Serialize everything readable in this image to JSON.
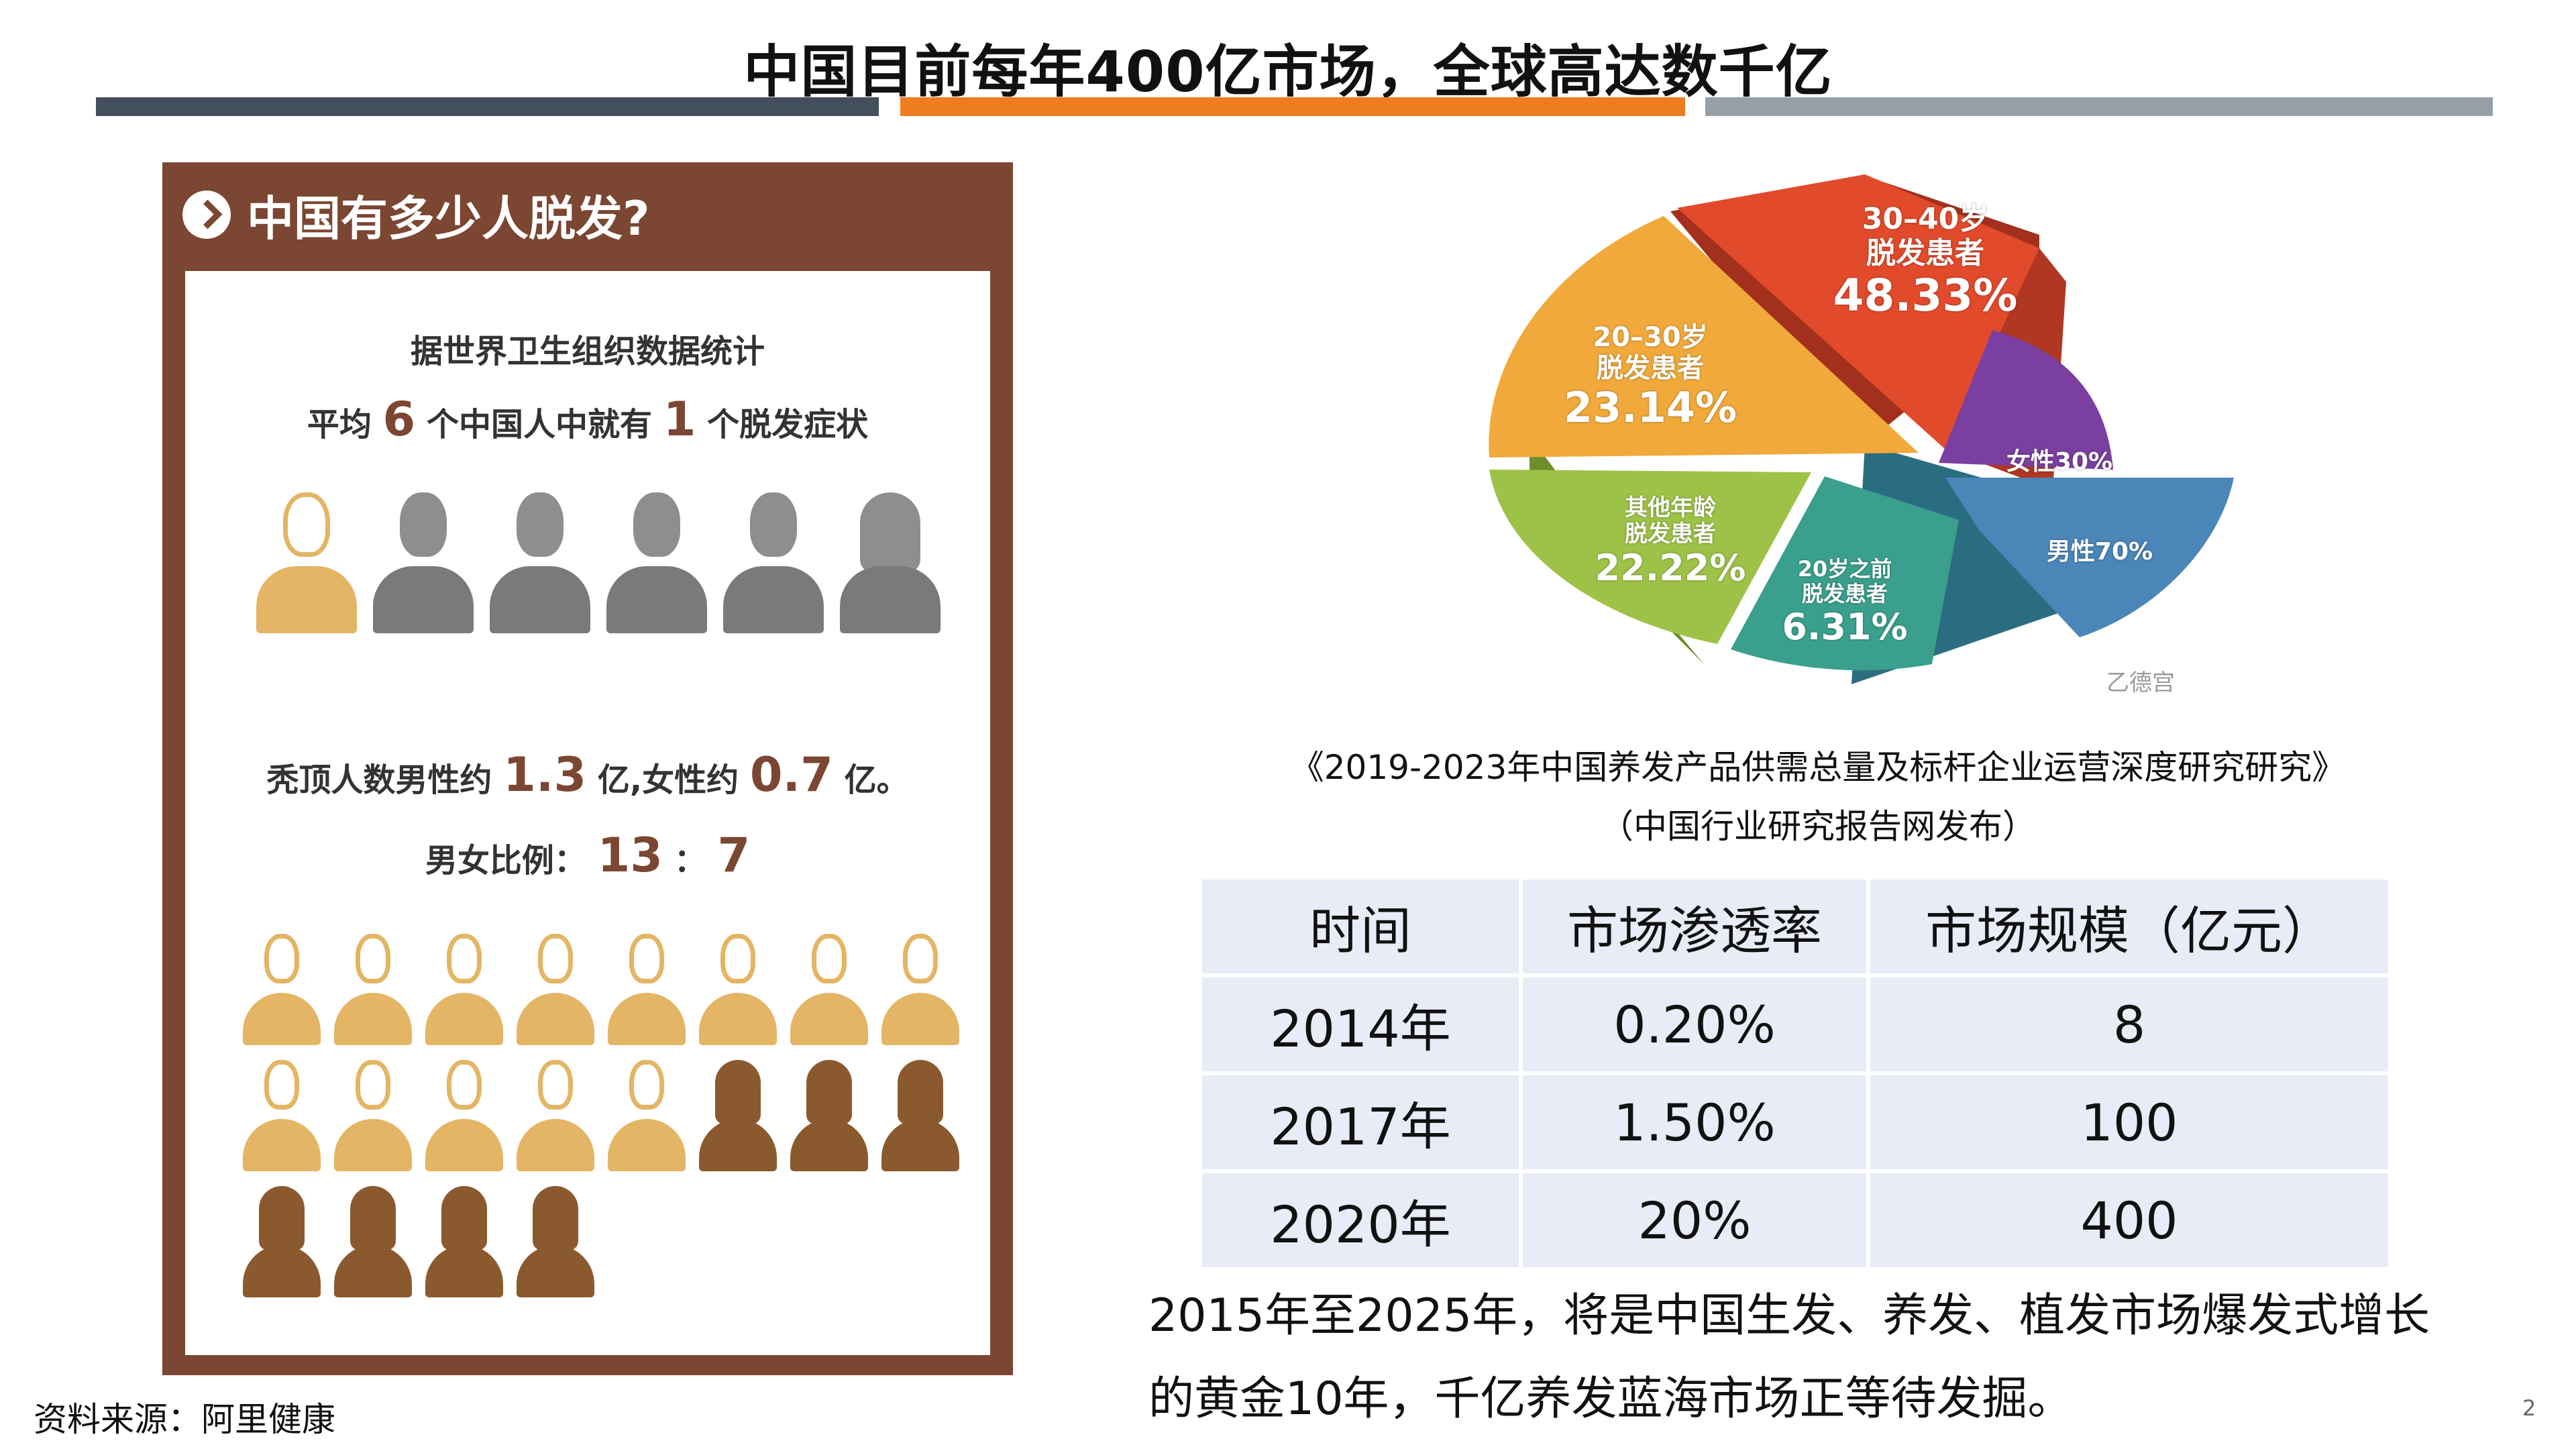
{
  "title": "中国目前每年400亿市场，全球高达数千亿",
  "infographic": {
    "header": "中国有多少人脱发?",
    "line1": "据世界卫生组织数据统计",
    "line2_pre": "平均",
    "line2_num1": "6",
    "line2_mid": "个中国人中就有",
    "line2_num2": "1",
    "line2_post": "个脱发症状",
    "line3_pre": "秃顶人数男性约",
    "line3_num1": "1.3",
    "line3_mid": "亿,女性约",
    "line3_num2": "0.7",
    "line3_post": "亿。",
    "line4_pre": "男女比例：",
    "line4_num1": "13",
    "line4_sep": "：",
    "line4_num2": "7",
    "colors": {
      "frame": "#7b4632",
      "gold": "#e3b564",
      "gray": "#7a7a7a",
      "brown": "#8a5a2e"
    }
  },
  "pie": {
    "slices": [
      {
        "label_l1": "30–40岁",
        "label_l2": "脱发患者",
        "value_text": "48.33%",
        "value": 48.33,
        "color": "#e14b2b"
      },
      {
        "label_l1": "20–30岁",
        "label_l2": "脱发患者",
        "value_text": "23.14%",
        "value": 23.14,
        "color": "#f0a93a"
      },
      {
        "label_l1": "其他年龄",
        "label_l2": "脱发患者",
        "value_text": "22.22%",
        "value": 22.22,
        "color": "#9dc247"
      },
      {
        "label_l1": "20岁之前",
        "label_l2": "脱发患者",
        "value_text": "6.31%",
        "value": 6.31,
        "color": "#3a9f8c"
      }
    ],
    "gender": [
      {
        "label": "女性30%",
        "value": 30,
        "color": "#7a3fa0"
      },
      {
        "label": "男性70%",
        "value": 70,
        "color": "#4a86b8"
      }
    ],
    "watermark": "乙德宫"
  },
  "caption": {
    "line1": "《2019-2023年中国养发产品供需总量及标杆企业运营深度研究研究》",
    "line2": "（中国行业研究报告网发布）"
  },
  "table": {
    "headers": [
      "时间",
      "市场渗透率",
      "市场规模（亿元）"
    ],
    "rows": [
      [
        "2014年",
        "0.20%",
        "8"
      ],
      [
        "2017年",
        "1.50%",
        "100"
      ],
      [
        "2020年",
        "20%",
        "400"
      ]
    ]
  },
  "summary": {
    "line1": "2015年至2025年，将是中国生发、养发、植发市场爆发式增长",
    "line2": "的黄金10年，千亿养发蓝海市场正等待发掘。"
  },
  "source": "资料来源：阿里健康",
  "page_number": "2"
}
